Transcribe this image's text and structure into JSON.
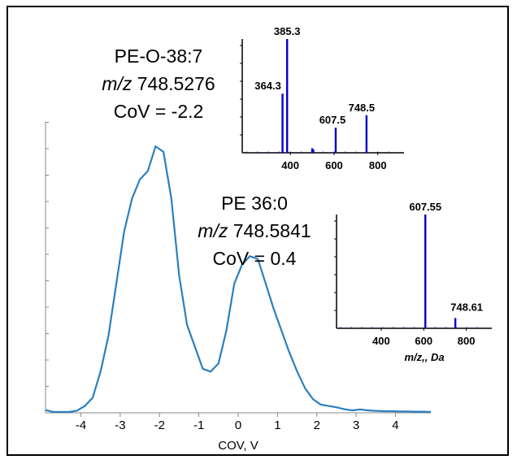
{
  "chart_data": [
    {
      "type": "line",
      "xlabel": "COV, V",
      "ylabel": "",
      "xlim": [
        -4.9,
        4.9
      ],
      "ylim": [
        0,
        100
      ],
      "x_ticks": [
        -4,
        -3,
        -2,
        -1,
        0,
        1,
        2,
        3,
        4
      ],
      "x_tick_labels": [
        "-4",
        "-3",
        "-2",
        "-1",
        "0",
        "1",
        "2",
        "3",
        "4"
      ],
      "grid": false,
      "series": [
        {
          "color": "#2b7fc0",
          "x": [
            -4.9,
            -4.7,
            -4.5,
            -4.3,
            -4.1,
            -3.9,
            -3.7,
            -3.5,
            -3.3,
            -3.1,
            -2.9,
            -2.7,
            -2.5,
            -2.3,
            -2.1,
            -1.9,
            -1.7,
            -1.5,
            -1.3,
            -1.1,
            -0.9,
            -0.7,
            -0.5,
            -0.3,
            -0.1,
            0.1,
            0.3,
            0.5,
            0.7,
            0.9,
            1.1,
            1.3,
            1.5,
            1.7,
            1.9,
            2.1,
            2.3,
            2.5,
            2.7,
            2.9,
            3.1,
            3.3,
            3.5,
            3.7,
            3.9,
            4.1,
            4.3,
            4.5,
            4.7,
            4.9
          ],
          "y": [
            1.0,
            0.3,
            0.3,
            0.3,
            0.8,
            2.5,
            5.5,
            15.0,
            28.0,
            47.0,
            66.0,
            78.0,
            85.0,
            88.0,
            97.0,
            95.0,
            78.0,
            50.0,
            32.0,
            24.0,
            16.0,
            15.0,
            18.0,
            30.0,
            47.0,
            54.0,
            57.0,
            56.0,
            47.0,
            38.0,
            30.0,
            22.0,
            15.0,
            9.0,
            5.0,
            3.0,
            2.5,
            2.0,
            1.3,
            0.9,
            1.2,
            0.9,
            0.7,
            0.6,
            0.6,
            0.5,
            0.5,
            0.4,
            0.4,
            0.3
          ]
        }
      ],
      "annotations": [
        {
          "lines": [
            "PE-O-38:7",
            "m/z 748.5276",
            "CoV = -2.2"
          ]
        },
        {
          "lines": [
            "PE 36:0",
            "m/z 748.5841",
            "CoV = 0.4"
          ]
        }
      ]
    },
    {
      "type": "bar",
      "xlabel": "",
      "xlim": [
        180,
        920
      ],
      "ylim": [
        0,
        100
      ],
      "x_ticks": [
        400,
        600,
        800
      ],
      "x_tick_labels": [
        "400",
        "600",
        "800"
      ],
      "color": "#0000cc",
      "x": [
        364.3,
        385.3,
        607.5,
        748.5,
        500,
        505
      ],
      "values": [
        52,
        100,
        22,
        33,
        4,
        3
      ],
      "data_labels": [
        "364.3",
        "385.3",
        "607.5",
        "748.5",
        "",
        ""
      ]
    },
    {
      "type": "bar",
      "xlabel": "m/z,, Da",
      "xlim": [
        190,
        920
      ],
      "ylim": [
        0,
        100
      ],
      "x_ticks": [
        400,
        600,
        800
      ],
      "x_tick_labels": [
        "400",
        "600",
        "800"
      ],
      "color": "#0000cc",
      "x": [
        607.55,
        748.61
      ],
      "values": [
        100,
        9
      ],
      "data_labels": [
        "607.55",
        "748.61"
      ]
    }
  ]
}
